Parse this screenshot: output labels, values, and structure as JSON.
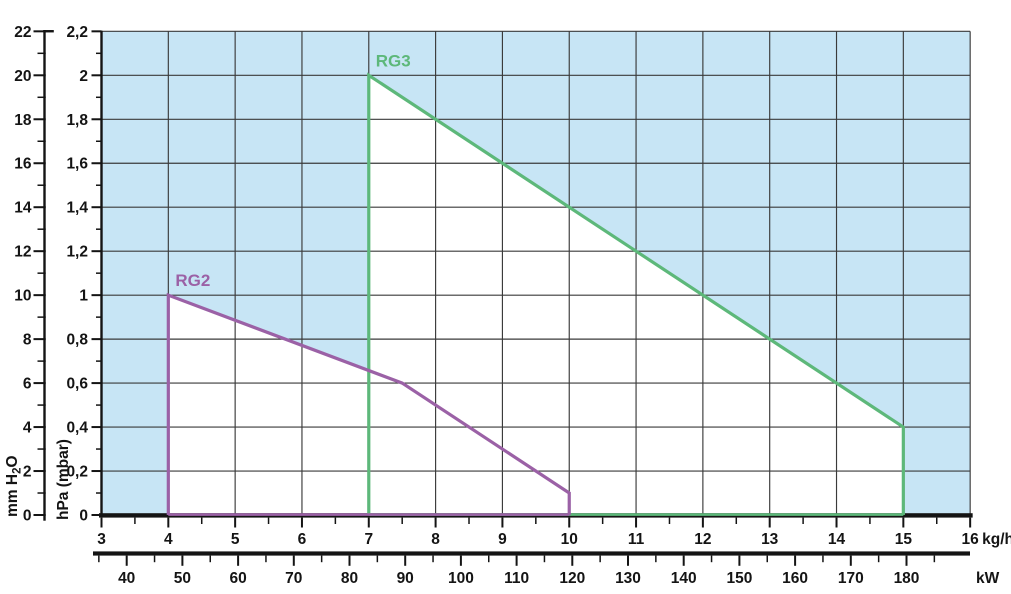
{
  "chart_data": {
    "type": "area",
    "title": "",
    "series": [
      {
        "name": "RG2",
        "color": "#9b61a6",
        "points": [
          [
            4,
            0
          ],
          [
            4,
            1
          ],
          [
            7.5,
            0.6
          ],
          [
            10,
            0.1
          ],
          [
            10,
            0
          ]
        ]
      },
      {
        "name": "RG3",
        "color": "#5db87a",
        "points": [
          [
            7,
            0
          ],
          [
            7,
            2
          ],
          [
            15,
            0.4
          ],
          [
            15,
            0
          ]
        ]
      }
    ],
    "x_axis": {
      "unit": "kg/h",
      "min": 3,
      "max": 16,
      "major_tick_step": 1,
      "minor_tick_step": 0.5,
      "tick_labels": [
        "3",
        "4",
        "5",
        "6",
        "7",
        "8",
        "9",
        "10",
        "11",
        "12",
        "13",
        "14",
        "15",
        "16"
      ]
    },
    "x_axis_secondary": {
      "unit": "kW",
      "label_min": 40,
      "label_max": 180,
      "major_tick_step": 10,
      "minor_tick_step": 5,
      "tick_min": 35,
      "tick_max": 185,
      "tick_labels": [
        "40",
        "50",
        "60",
        "70",
        "80",
        "90",
        "100",
        "110",
        "120",
        "130",
        "140",
        "150",
        "160",
        "170",
        "180"
      ]
    },
    "y_axis": {
      "unit": "hPa (mbar)",
      "min": 0,
      "max": 2.2,
      "major_tick_step": 0.2,
      "minor_tick_step": 0.1,
      "tick_labels": [
        "0",
        "0,2",
        "0,4",
        "0,6",
        "0,8",
        "1",
        "1,2",
        "1,4",
        "1,6",
        "1,8",
        "2",
        "2,2"
      ]
    },
    "y_axis_secondary": {
      "unit": "mm H₂O",
      "min": 0,
      "max": 22,
      "major_tick_step": 2,
      "minor_tick_step": 1,
      "tick_labels": [
        "0",
        "2",
        "4",
        "6",
        "8",
        "10",
        "12",
        "14",
        "16",
        "18",
        "20",
        "22"
      ]
    },
    "grid": true,
    "legend_position": "inline-labels",
    "colors": {
      "outside_fill": "#c7e5f5",
      "field_fill": "#ffffff",
      "grid": "#3a3a3a",
      "axis": "#141414"
    }
  }
}
